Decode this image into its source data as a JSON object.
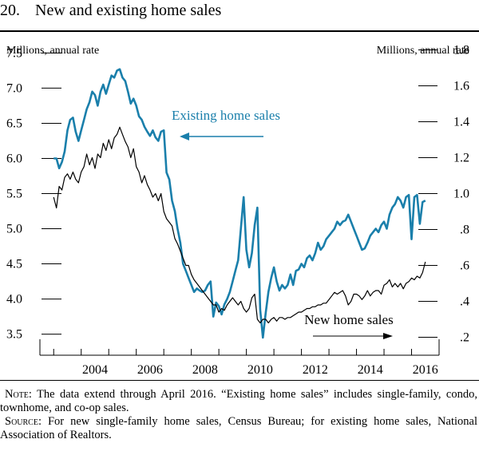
{
  "figure": {
    "number": "20.",
    "title": "New and existing home sales"
  },
  "notes": {
    "note_label": "Note:",
    "note_text": "The data extend through April 2016. “Existing home sales” includes single-family, condo, townhome, and co-op sales.",
    "source_label": "Source:",
    "source_text": "For new single-family home sales, Census Bureau; for existing home sales, National Association of Realtors."
  },
  "colors": {
    "existing": "#1a7fab",
    "new": "#000000"
  },
  "chart_data": {
    "type": "line",
    "left_axis_label": "Millions, annual rate",
    "right_axis_label": "Millions, annual rate",
    "y_left": {
      "lim": [
        3.2,
        7.8
      ],
      "ticks": [
        "7.5",
        "7.0",
        "6.5",
        "6.0",
        "5.5",
        "5.0",
        "4.5",
        "4.0",
        "3.5"
      ]
    },
    "y_right": {
      "lim": [
        0.1,
        1.9
      ],
      "ticks": [
        "1.8",
        "1.6",
        "1.4",
        "1.2",
        "1.0",
        ".8",
        ".6",
        ".4",
        ".2"
      ]
    },
    "x": {
      "lim": [
        2002.5,
        2017.0
      ],
      "labels": [
        "2004",
        "2006",
        "2008",
        "2010",
        "2012",
        "2014",
        "2016"
      ]
    },
    "series": [
      {
        "name": "Existing home sales",
        "axis": "left",
        "direction": "left",
        "points": [
          [
            2003.0,
            6.0
          ],
          [
            2003.1,
            6.0
          ],
          [
            2003.2,
            5.86
          ],
          [
            2003.3,
            5.95
          ],
          [
            2003.4,
            6.1
          ],
          [
            2003.5,
            6.4
          ],
          [
            2003.6,
            6.55
          ],
          [
            2003.7,
            6.58
          ],
          [
            2003.8,
            6.38
          ],
          [
            2003.9,
            6.25
          ],
          [
            2004.0,
            6.4
          ],
          [
            2004.1,
            6.55
          ],
          [
            2004.2,
            6.7
          ],
          [
            2004.3,
            6.8
          ],
          [
            2004.4,
            6.95
          ],
          [
            2004.5,
            6.9
          ],
          [
            2004.6,
            6.75
          ],
          [
            2004.7,
            6.95
          ],
          [
            2004.8,
            7.05
          ],
          [
            2004.9,
            6.92
          ],
          [
            2005.0,
            7.05
          ],
          [
            2005.1,
            7.18
          ],
          [
            2005.2,
            7.15
          ],
          [
            2005.3,
            7.25
          ],
          [
            2005.4,
            7.27
          ],
          [
            2005.5,
            7.15
          ],
          [
            2005.6,
            7.1
          ],
          [
            2005.7,
            6.95
          ],
          [
            2005.8,
            6.78
          ],
          [
            2005.9,
            6.85
          ],
          [
            2006.0,
            6.75
          ],
          [
            2006.1,
            6.6
          ],
          [
            2006.2,
            6.55
          ],
          [
            2006.3,
            6.45
          ],
          [
            2006.4,
            6.38
          ],
          [
            2006.5,
            6.32
          ],
          [
            2006.6,
            6.4
          ],
          [
            2006.7,
            6.3
          ],
          [
            2006.8,
            6.25
          ],
          [
            2006.9,
            6.38
          ],
          [
            2007.0,
            6.4
          ],
          [
            2007.1,
            5.8
          ],
          [
            2007.2,
            5.7
          ],
          [
            2007.3,
            5.4
          ],
          [
            2007.4,
            5.25
          ],
          [
            2007.5,
            5.0
          ],
          [
            2007.6,
            4.8
          ],
          [
            2007.7,
            4.5
          ],
          [
            2007.8,
            4.4
          ],
          [
            2007.9,
            4.3
          ],
          [
            2008.0,
            4.2
          ],
          [
            2008.1,
            4.1
          ],
          [
            2008.2,
            4.15
          ],
          [
            2008.3,
            4.12
          ],
          [
            2008.4,
            4.1
          ],
          [
            2008.5,
            4.12
          ],
          [
            2008.6,
            4.2
          ],
          [
            2008.7,
            4.25
          ],
          [
            2008.8,
            3.75
          ],
          [
            2008.9,
            3.95
          ],
          [
            2009.0,
            3.9
          ],
          [
            2009.1,
            3.78
          ],
          [
            2009.2,
            3.92
          ],
          [
            2009.3,
            4.0
          ],
          [
            2009.4,
            4.1
          ],
          [
            2009.5,
            4.25
          ],
          [
            2009.6,
            4.4
          ],
          [
            2009.7,
            4.55
          ],
          [
            2009.8,
            5.0
          ],
          [
            2009.9,
            5.45
          ],
          [
            2010.0,
            4.7
          ],
          [
            2010.1,
            4.45
          ],
          [
            2010.2,
            4.65
          ],
          [
            2010.3,
            5.05
          ],
          [
            2010.4,
            5.3
          ],
          [
            2010.5,
            3.85
          ],
          [
            2010.6,
            3.45
          ],
          [
            2010.7,
            3.8
          ],
          [
            2010.8,
            4.1
          ],
          [
            2010.9,
            4.3
          ],
          [
            2011.0,
            4.45
          ],
          [
            2011.1,
            4.25
          ],
          [
            2011.2,
            4.12
          ],
          [
            2011.3,
            4.2
          ],
          [
            2011.4,
            4.15
          ],
          [
            2011.5,
            4.2
          ],
          [
            2011.6,
            4.35
          ],
          [
            2011.7,
            4.2
          ],
          [
            2011.8,
            4.4
          ],
          [
            2011.9,
            4.42
          ],
          [
            2012.0,
            4.5
          ],
          [
            2012.1,
            4.45
          ],
          [
            2012.2,
            4.58
          ],
          [
            2012.3,
            4.62
          ],
          [
            2012.4,
            4.55
          ],
          [
            2012.5,
            4.65
          ],
          [
            2012.6,
            4.8
          ],
          [
            2012.7,
            4.7
          ],
          [
            2012.8,
            4.75
          ],
          [
            2012.9,
            4.85
          ],
          [
            2013.0,
            4.9
          ],
          [
            2013.1,
            4.95
          ],
          [
            2013.2,
            5.0
          ],
          [
            2013.3,
            5.1
          ],
          [
            2013.4,
            5.05
          ],
          [
            2013.5,
            5.1
          ],
          [
            2013.6,
            5.12
          ],
          [
            2013.7,
            5.2
          ],
          [
            2013.8,
            5.1
          ],
          [
            2013.9,
            5.0
          ],
          [
            2014.0,
            4.9
          ],
          [
            2014.1,
            4.8
          ],
          [
            2014.2,
            4.7
          ],
          [
            2014.3,
            4.72
          ],
          [
            2014.4,
            4.8
          ],
          [
            2014.5,
            4.9
          ],
          [
            2014.6,
            4.95
          ],
          [
            2014.7,
            5.0
          ],
          [
            2014.8,
            4.95
          ],
          [
            2014.9,
            5.05
          ],
          [
            2015.0,
            5.1
          ],
          [
            2015.1,
            5.0
          ],
          [
            2015.2,
            5.2
          ],
          [
            2015.3,
            5.3
          ],
          [
            2015.4,
            5.35
          ],
          [
            2015.5,
            5.45
          ],
          [
            2015.6,
            5.4
          ],
          [
            2015.7,
            5.3
          ],
          [
            2015.8,
            5.45
          ],
          [
            2015.9,
            5.48
          ],
          [
            2016.0,
            4.85
          ],
          [
            2016.1,
            5.45
          ],
          [
            2016.2,
            5.48
          ],
          [
            2016.3,
            5.07
          ],
          [
            2016.4,
            5.38
          ],
          [
            2016.5,
            5.4
          ]
        ]
      },
      {
        "name": "New home sales",
        "axis": "right",
        "direction": "right",
        "points": [
          [
            2003.0,
            0.98
          ],
          [
            2003.1,
            0.92
          ],
          [
            2003.2,
            1.04
          ],
          [
            2003.3,
            1.02
          ],
          [
            2003.4,
            1.09
          ],
          [
            2003.5,
            1.11
          ],
          [
            2003.6,
            1.08
          ],
          [
            2003.7,
            1.12
          ],
          [
            2003.8,
            1.08
          ],
          [
            2003.9,
            1.06
          ],
          [
            2004.0,
            1.12
          ],
          [
            2004.1,
            1.15
          ],
          [
            2004.2,
            1.22
          ],
          [
            2004.3,
            1.16
          ],
          [
            2004.4,
            1.2
          ],
          [
            2004.5,
            1.14
          ],
          [
            2004.6,
            1.22
          ],
          [
            2004.7,
            1.2
          ],
          [
            2004.8,
            1.28
          ],
          [
            2004.9,
            1.24
          ],
          [
            2005.0,
            1.3
          ],
          [
            2005.1,
            1.25
          ],
          [
            2005.2,
            1.31
          ],
          [
            2005.3,
            1.33
          ],
          [
            2005.4,
            1.37
          ],
          [
            2005.5,
            1.33
          ],
          [
            2005.6,
            1.29
          ],
          [
            2005.7,
            1.26
          ],
          [
            2005.8,
            1.2
          ],
          [
            2005.9,
            1.25
          ],
          [
            2006.0,
            1.15
          ],
          [
            2006.1,
            1.12
          ],
          [
            2006.2,
            1.06
          ],
          [
            2006.3,
            1.1
          ],
          [
            2006.4,
            1.05
          ],
          [
            2006.5,
            1.02
          ],
          [
            2006.6,
            0.98
          ],
          [
            2006.7,
            1.0
          ],
          [
            2006.8,
            0.96
          ],
          [
            2006.9,
            1.0
          ],
          [
            2007.0,
            0.9
          ],
          [
            2007.1,
            0.86
          ],
          [
            2007.2,
            0.84
          ],
          [
            2007.3,
            0.82
          ],
          [
            2007.4,
            0.75
          ],
          [
            2007.5,
            0.72
          ],
          [
            2007.6,
            0.68
          ],
          [
            2007.7,
            0.64
          ],
          [
            2007.8,
            0.6
          ],
          [
            2007.9,
            0.6
          ],
          [
            2008.0,
            0.55
          ],
          [
            2008.1,
            0.52
          ],
          [
            2008.2,
            0.5
          ],
          [
            2008.3,
            0.48
          ],
          [
            2008.4,
            0.46
          ],
          [
            2008.5,
            0.44
          ],
          [
            2008.6,
            0.42
          ],
          [
            2008.7,
            0.4
          ],
          [
            2008.8,
            0.38
          ],
          [
            2008.9,
            0.38
          ],
          [
            2009.0,
            0.34
          ],
          [
            2009.1,
            0.36
          ],
          [
            2009.2,
            0.35
          ],
          [
            2009.3,
            0.38
          ],
          [
            2009.4,
            0.4
          ],
          [
            2009.5,
            0.42
          ],
          [
            2009.6,
            0.4
          ],
          [
            2009.7,
            0.38
          ],
          [
            2009.8,
            0.4
          ],
          [
            2009.9,
            0.36
          ],
          [
            2010.0,
            0.34
          ],
          [
            2010.1,
            0.36
          ],
          [
            2010.2,
            0.42
          ],
          [
            2010.3,
            0.44
          ],
          [
            2010.4,
            0.3
          ],
          [
            2010.5,
            0.28
          ],
          [
            2010.6,
            0.3
          ],
          [
            2010.7,
            0.3
          ],
          [
            2010.8,
            0.28
          ],
          [
            2010.9,
            0.3
          ],
          [
            2011.0,
            0.31
          ],
          [
            2011.1,
            0.29
          ],
          [
            2011.2,
            0.31
          ],
          [
            2011.3,
            0.31
          ],
          [
            2011.4,
            0.3
          ],
          [
            2011.5,
            0.31
          ],
          [
            2011.6,
            0.31
          ],
          [
            2011.7,
            0.32
          ],
          [
            2011.8,
            0.33
          ],
          [
            2011.9,
            0.34
          ],
          [
            2012.0,
            0.34
          ],
          [
            2012.1,
            0.35
          ],
          [
            2012.2,
            0.36
          ],
          [
            2012.3,
            0.36
          ],
          [
            2012.4,
            0.37
          ],
          [
            2012.5,
            0.37
          ],
          [
            2012.6,
            0.38
          ],
          [
            2012.7,
            0.38
          ],
          [
            2012.8,
            0.39
          ],
          [
            2012.9,
            0.39
          ],
          [
            2013.0,
            0.41
          ],
          [
            2013.1,
            0.43
          ],
          [
            2013.2,
            0.45
          ],
          [
            2013.3,
            0.44
          ],
          [
            2013.4,
            0.45
          ],
          [
            2013.5,
            0.46
          ],
          [
            2013.6,
            0.43
          ],
          [
            2013.7,
            0.38
          ],
          [
            2013.8,
            0.4
          ],
          [
            2013.9,
            0.44
          ],
          [
            2014.0,
            0.44
          ],
          [
            2014.1,
            0.43
          ],
          [
            2014.2,
            0.41
          ],
          [
            2014.3,
            0.43
          ],
          [
            2014.4,
            0.46
          ],
          [
            2014.5,
            0.43
          ],
          [
            2014.6,
            0.45
          ],
          [
            2014.7,
            0.46
          ],
          [
            2014.8,
            0.46
          ],
          [
            2014.9,
            0.44
          ],
          [
            2015.0,
            0.49
          ],
          [
            2015.1,
            0.5
          ],
          [
            2015.2,
            0.52
          ],
          [
            2015.3,
            0.48
          ],
          [
            2015.4,
            0.5
          ],
          [
            2015.5,
            0.48
          ],
          [
            2015.6,
            0.5
          ],
          [
            2015.7,
            0.47
          ],
          [
            2015.8,
            0.5
          ],
          [
            2015.9,
            0.51
          ],
          [
            2016.0,
            0.53
          ],
          [
            2016.1,
            0.52
          ],
          [
            2016.2,
            0.54
          ],
          [
            2016.3,
            0.53
          ],
          [
            2016.4,
            0.56
          ],
          [
            2016.5,
            0.62
          ]
        ]
      }
    ]
  }
}
